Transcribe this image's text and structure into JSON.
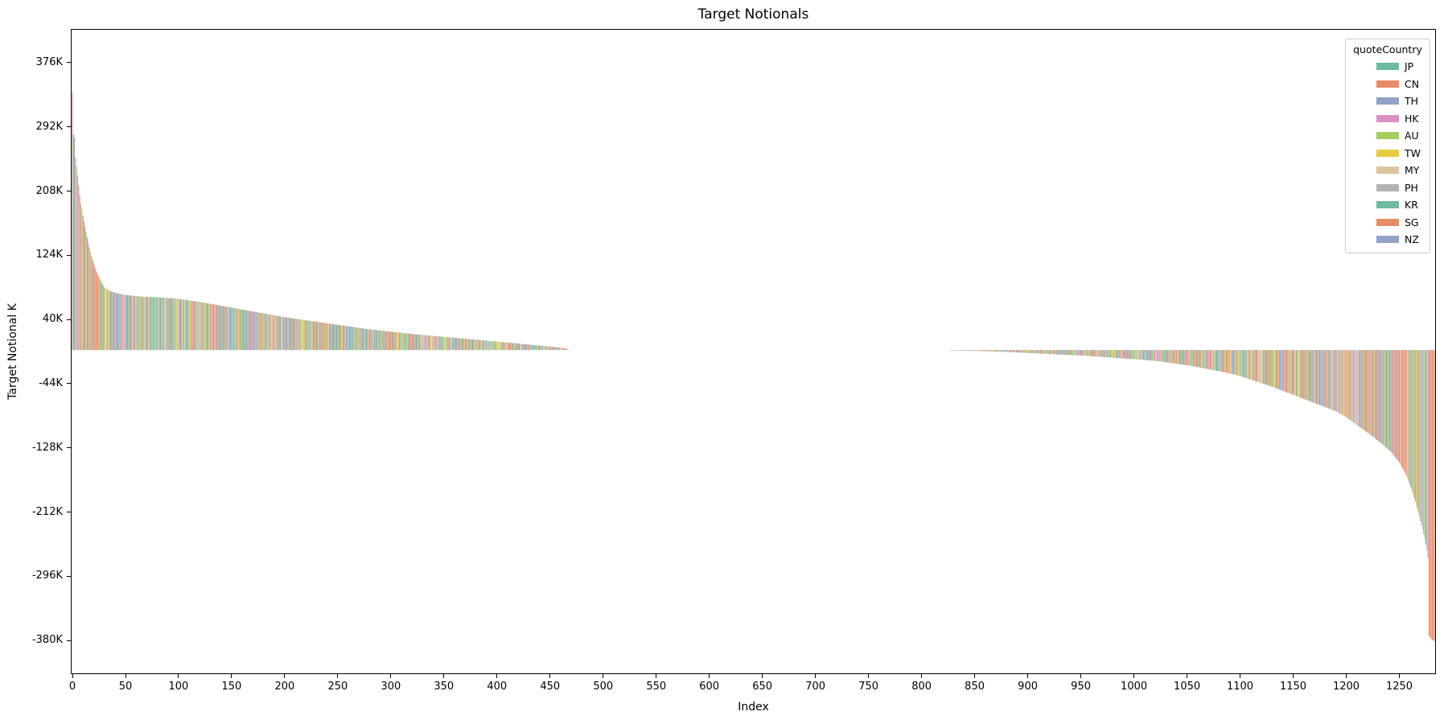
{
  "chart_data": {
    "type": "bar",
    "title": "Target Notionals",
    "xlabel": "Index",
    "ylabel": "Target Notional K",
    "grid": false,
    "n_bars": 1284,
    "xlim": [
      -1.5,
      1284.5
    ],
    "ylim_k": [
      -424,
      420
    ],
    "yticks_k": [
      376,
      292,
      208,
      124,
      40,
      -44,
      -128,
      -212,
      -296,
      -380
    ],
    "ytick_labels": [
      "376K",
      "292K",
      "208K",
      "124K",
      "40K",
      "-44K",
      "-128K",
      "-212K",
      "-296K",
      "-380K"
    ],
    "xticks": [
      0,
      50,
      100,
      150,
      200,
      250,
      300,
      350,
      400,
      450,
      500,
      550,
      600,
      650,
      700,
      750,
      800,
      850,
      900,
      950,
      1000,
      1050,
      1100,
      1150,
      1200,
      1250
    ],
    "legend_title": "quoteCountry",
    "legend_position": "upper right",
    "countries": [
      "JP",
      "CN",
      "TH",
      "HK",
      "AU",
      "TW",
      "MY",
      "PH",
      "KR",
      "SG",
      "NZ"
    ],
    "series_colors": {
      "JP": "#6cbaa0",
      "CN": "#ea8b67",
      "TH": "#92a1c6",
      "HK": "#dc8fc3",
      "AU": "#a5cc5f",
      "TW": "#e5cc42",
      "MY": "#dcc49d",
      "PH": "#b3b3b3",
      "KR": "#6cbaa0",
      "SG": "#ea8b67",
      "NZ": "#92a1c6"
    },
    "country_weights": {
      "JP": 0.14,
      "CN": 0.16,
      "TH": 0.09,
      "HK": 0.09,
      "AU": 0.08,
      "TW": 0.07,
      "MY": 0.06,
      "PH": 0.06,
      "KR": 0.11,
      "SG": 0.09,
      "NZ": 0.05
    },
    "color_seed": 7,
    "color_overrides": {
      "0": "CN",
      "1": "JP",
      "2": "KR",
      "3": "HK",
      "1278": "SG",
      "1279": "SG",
      "1280": "SG",
      "1281": "SG",
      "1282": "SG",
      "1283": "SG"
    },
    "value_anchors_k": [
      [
        0,
        337
      ],
      [
        1,
        282
      ],
      [
        2,
        278
      ],
      [
        3,
        251
      ],
      [
        4,
        240
      ],
      [
        5,
        229
      ],
      [
        6,
        215
      ],
      [
        7,
        202
      ],
      [
        8,
        191
      ],
      [
        9,
        185
      ],
      [
        10,
        176
      ],
      [
        12,
        161
      ],
      [
        14,
        147
      ],
      [
        16,
        134
      ],
      [
        18,
        123
      ],
      [
        20,
        114
      ],
      [
        22,
        106
      ],
      [
        24,
        98
      ],
      [
        27,
        90
      ],
      [
        30,
        82
      ],
      [
        34,
        78
      ],
      [
        40,
        75
      ],
      [
        50,
        72
      ],
      [
        65,
        70
      ],
      [
        80,
        69
      ],
      [
        100,
        67
      ],
      [
        120,
        63
      ],
      [
        140,
        58
      ],
      [
        160,
        53
      ],
      [
        180,
        48
      ],
      [
        200,
        43
      ],
      [
        220,
        39
      ],
      [
        240,
        35
      ],
      [
        260,
        31
      ],
      [
        280,
        27
      ],
      [
        300,
        24
      ],
      [
        320,
        21
      ],
      [
        340,
        18.5
      ],
      [
        360,
        16
      ],
      [
        380,
        13.5
      ],
      [
        400,
        11
      ],
      [
        420,
        8.5
      ],
      [
        435,
        6.5
      ],
      [
        450,
        4.5
      ],
      [
        460,
        3
      ],
      [
        466,
        1.5
      ],
      [
        467,
        1
      ],
      [
        468,
        0
      ],
      [
        826,
        0
      ],
      [
        827,
        -0.5
      ],
      [
        845,
        -1
      ],
      [
        860,
        -1.6
      ],
      [
        875,
        -2.3
      ],
      [
        890,
        -3.2
      ],
      [
        905,
        -4.2
      ],
      [
        920,
        -5.2
      ],
      [
        935,
        -6.2
      ],
      [
        950,
        -7.2
      ],
      [
        965,
        -8.5
      ],
      [
        980,
        -10
      ],
      [
        995,
        -11.5
      ],
      [
        1010,
        -13
      ],
      [
        1025,
        -15
      ],
      [
        1040,
        -18
      ],
      [
        1055,
        -21
      ],
      [
        1070,
        -25
      ],
      [
        1085,
        -29
      ],
      [
        1100,
        -34
      ],
      [
        1115,
        -41
      ],
      [
        1130,
        -48
      ],
      [
        1145,
        -56
      ],
      [
        1160,
        -64
      ],
      [
        1175,
        -72
      ],
      [
        1190,
        -80
      ],
      [
        1200,
        -88
      ],
      [
        1212,
        -100
      ],
      [
        1222,
        -110
      ],
      [
        1232,
        -121
      ],
      [
        1242,
        -133
      ],
      [
        1250,
        -147
      ],
      [
        1256,
        -162
      ],
      [
        1261,
        -180
      ],
      [
        1265,
        -198
      ],
      [
        1268,
        -213
      ],
      [
        1270,
        -224
      ],
      [
        1272,
        -235
      ],
      [
        1274,
        -247
      ],
      [
        1276,
        -262
      ],
      [
        1277,
        -272
      ],
      [
        1278,
        -374
      ],
      [
        1280,
        -378
      ],
      [
        1283,
        -381
      ]
    ]
  }
}
